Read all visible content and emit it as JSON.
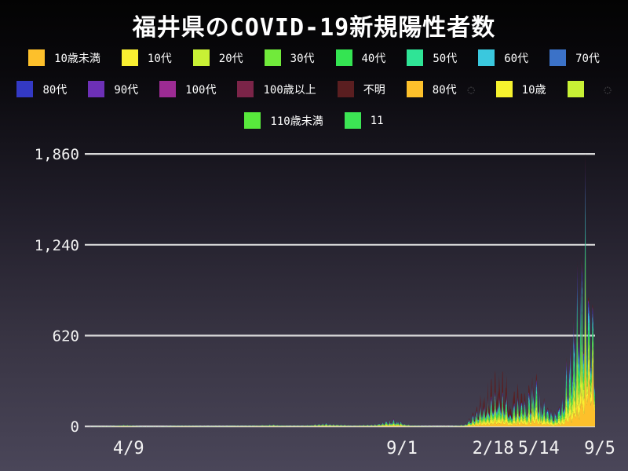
{
  "chart_data": {
    "type": "stacked-area",
    "title": "福井県のCOVID-19新規陽性者数",
    "xlabel": "",
    "ylabel": "",
    "grid": "horizontal",
    "legend_position": "top",
    "x_range": [
      "2020-01-30",
      "2022-09-05"
    ],
    "ylim": [
      0,
      1900
    ],
    "y_ticks": [
      0,
      620,
      1240,
      1860
    ],
    "y_tick_labels": [
      "0",
      "620",
      "1,240",
      "1,860"
    ],
    "x_tick_labels": [
      {
        "label": "4/9",
        "date": "2020-04-09"
      },
      {
        "label": "9/1",
        "date": "2021-09-01"
      },
      {
        "label": "2/18",
        "date": "2022-02-18"
      },
      {
        "label": "5/14",
        "date": "2022-05-14"
      },
      {
        "label": "9/5",
        "date": "2022-09-05"
      }
    ],
    "bands": [
      {
        "id": "under10",
        "label": "10歳未満",
        "color": "#fdc02b",
        "f": 0.15
      },
      {
        "id": "teens",
        "label": "10代",
        "color": "#f9ef31",
        "f": 0.16
      },
      {
        "id": "20s",
        "label": "20代",
        "color": "#c8f135",
        "f": 0.13
      },
      {
        "id": "30s",
        "label": "30代",
        "color": "#71ea3b",
        "f": 0.13
      },
      {
        "id": "40s",
        "label": "40代",
        "color": "#34e452",
        "f": 0.12
      },
      {
        "id": "50s",
        "label": "50代",
        "color": "#2fe496",
        "f": 0.1
      },
      {
        "id": "60s",
        "label": "60代",
        "color": "#3ac8de",
        "f": 0.08
      },
      {
        "id": "70s",
        "label": "70代",
        "color": "#3b72c8",
        "f": 0.05
      },
      {
        "id": "80s",
        "label": "80代",
        "color": "#3339c4",
        "f": 0.04
      },
      {
        "id": "90s",
        "label": "90代",
        "color": "#6d30b6",
        "f": 0.02
      },
      {
        "id": "100s",
        "label": "100代",
        "color": "#9c2b93",
        "f": 0.01
      },
      {
        "id": "over100",
        "label": "100歳以上",
        "color": "#7b2448",
        "f": 0.01
      },
      {
        "id": "unknown",
        "label": "不明",
        "color": "#5a1e20",
        "f": 0
      }
    ],
    "totals": [
      [
        "2020-01-30",
        0
      ],
      [
        "2020-03-20",
        3
      ],
      [
        "2020-04-09",
        14
      ],
      [
        "2020-04-22",
        8
      ],
      [
        "2020-05-10",
        1
      ],
      [
        "2020-06-15",
        1
      ],
      [
        "2020-07-25",
        6
      ],
      [
        "2020-09-10",
        3
      ],
      [
        "2020-10-20",
        4
      ],
      [
        "2020-12-01",
        6
      ],
      [
        "2021-01-12",
        18
      ],
      [
        "2021-02-10",
        6
      ],
      [
        "2021-03-10",
        8
      ],
      [
        "2021-04-20",
        28
      ],
      [
        "2021-05-15",
        20
      ],
      [
        "2021-06-10",
        8
      ],
      [
        "2021-07-20",
        18
      ],
      [
        "2021-08-25",
        60
      ],
      [
        "2021-09-08",
        42
      ],
      [
        "2021-09-25",
        12
      ],
      [
        "2021-10-15",
        4
      ],
      [
        "2021-11-15",
        2
      ],
      [
        "2021-12-10",
        2
      ],
      [
        "2022-01-05",
        15
      ],
      [
        "2022-01-20",
        110
      ],
      [
        "2022-02-05",
        260
      ],
      [
        "2022-02-18",
        320
      ],
      [
        "2022-03-01",
        420
      ],
      [
        "2022-03-17",
        565
      ],
      [
        "2022-03-28",
        300
      ],
      [
        "2022-04-02",
        200
      ],
      [
        "2022-04-10",
        360
      ],
      [
        "2022-04-18",
        300
      ],
      [
        "2022-04-24",
        340
      ],
      [
        "2022-05-02",
        260
      ],
      [
        "2022-05-14",
        470
      ],
      [
        "2022-05-24",
        320
      ],
      [
        "2022-06-08",
        170
      ],
      [
        "2022-06-22",
        115
      ],
      [
        "2022-07-06",
        260
      ],
      [
        "2022-07-16",
        560
      ],
      [
        "2022-07-26",
        900
      ],
      [
        "2022-08-04",
        1280
      ],
      [
        "2022-08-12",
        1580
      ],
      [
        "2022-08-18",
        1860
      ],
      [
        "2022-08-24",
        1480
      ],
      [
        "2022-08-31",
        1050
      ],
      [
        "2022-09-05",
        880
      ]
    ],
    "unknown_frac": [
      [
        "2020-01-30",
        0.04
      ],
      [
        "2021-12-31",
        0.05
      ],
      [
        "2022-01-15",
        0.15
      ],
      [
        "2022-02-05",
        0.3
      ],
      [
        "2022-03-01",
        0.38
      ],
      [
        "2022-03-20",
        0.38
      ],
      [
        "2022-04-15",
        0.32
      ],
      [
        "2022-05-01",
        0.2
      ],
      [
        "2022-05-14",
        0.12
      ],
      [
        "2022-06-01",
        0.08
      ],
      [
        "2022-07-01",
        0.04
      ],
      [
        "2022-08-01",
        0.02
      ],
      [
        "2022-09-05",
        0.02
      ]
    ],
    "child_frac": [
      [
        "2020-01-30",
        0.13
      ],
      [
        "2022-08-08",
        0.15
      ],
      [
        "2022-08-20",
        0.3
      ],
      [
        "2022-08-28",
        0.42
      ],
      [
        "2022-09-05",
        0.5
      ]
    ],
    "colors": {
      "gridline": "#d8d8d8",
      "axis_text": "#f2f2f2",
      "background_top": "#030303",
      "background_bottom": "#4a4659"
    }
  },
  "legend": {
    "rows": [
      [
        {
          "label": "10歳未満",
          "color": "#fdc02b"
        },
        {
          "label": "10代",
          "color": "#f9ef31"
        },
        {
          "label": "20代",
          "color": "#c8f135"
        },
        {
          "label": "30代",
          "color": "#71ea3b"
        },
        {
          "label": "40代",
          "color": "#34e452"
        },
        {
          "label": "50代",
          "color": "#2fe496"
        },
        {
          "label": "60代",
          "color": "#3ac8de"
        },
        {
          "label": "70代",
          "color": "#3b72c8"
        }
      ],
      [
        {
          "label": "80代",
          "color": "#3339c4"
        },
        {
          "label": "90代",
          "color": "#6d30b6"
        },
        {
          "label": "100代",
          "color": "#9c2b93"
        },
        {
          "label": "100歳以上",
          "color": "#7b2448"
        },
        {
          "label": "不明",
          "color": "#5a1e20"
        },
        {
          "label": "80代",
          "color": "#fdc02b",
          "ghost": "◌"
        },
        {
          "label": "10歳",
          "color": "#f6f22e"
        },
        {
          "label": "",
          "color": "#c8f135",
          "ghost": "◌"
        }
      ],
      [
        {
          "label": "110歳未満",
          "color": "#58e93c"
        },
        {
          "label": "11",
          "color": "#3ce554"
        }
      ]
    ]
  }
}
